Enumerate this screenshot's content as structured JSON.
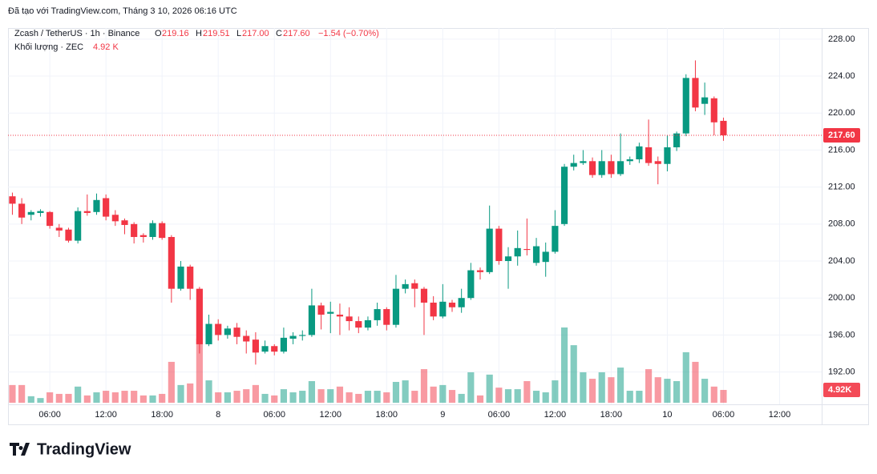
{
  "chart_data": {
    "type": "candlestick",
    "caption": "Đã tạo với TradingView.com, Tháng 3 10, 2026 06:16 UTC",
    "legend": {
      "symbol": "Zcash / TetherUS · 1h · Binance",
      "o_label": "O",
      "open": "219.16",
      "h_label": "H",
      "high": "219.51",
      "l_label": "L",
      "low": "217.00",
      "c_label": "C",
      "close": "217.60",
      "change": "−1.54 (−0.70%)",
      "volume_title": "Khối lượng · ZEC",
      "volume_value": "4.92 K"
    },
    "volume_label": "4.92K",
    "brand": "TradingView",
    "up_color": "#089981",
    "down_color": "#f23645",
    "x": [
      "2026-03-07T02:00",
      "2026-03-07T03:00",
      "2026-03-07T04:00",
      "2026-03-07T05:00",
      "2026-03-07T06:00",
      "2026-03-07T07:00",
      "2026-03-07T08:00",
      "2026-03-07T09:00",
      "2026-03-07T10:00",
      "2026-03-07T11:00",
      "2026-03-07T12:00",
      "2026-03-07T13:00",
      "2026-03-07T14:00",
      "2026-03-07T15:00",
      "2026-03-07T16:00",
      "2026-03-07T17:00",
      "2026-03-07T18:00",
      "2026-03-07T19:00",
      "2026-03-07T20:00",
      "2026-03-07T21:00",
      "2026-03-07T22:00",
      "2026-03-07T23:00",
      "2026-03-08T00:00",
      "2026-03-08T01:00",
      "2026-03-08T02:00",
      "2026-03-08T03:00",
      "2026-03-08T04:00",
      "2026-03-08T05:00",
      "2026-03-08T06:00",
      "2026-03-08T07:00",
      "2026-03-08T08:00",
      "2026-03-08T09:00",
      "2026-03-08T10:00",
      "2026-03-08T11:00",
      "2026-03-08T12:00",
      "2026-03-08T13:00",
      "2026-03-08T14:00",
      "2026-03-08T15:00",
      "2026-03-08T16:00",
      "2026-03-08T17:00",
      "2026-03-08T18:00",
      "2026-03-08T19:00",
      "2026-03-08T20:00",
      "2026-03-08T21:00",
      "2026-03-08T22:00",
      "2026-03-08T23:00",
      "2026-03-09T00:00",
      "2026-03-09T01:00",
      "2026-03-09T02:00",
      "2026-03-09T03:00",
      "2026-03-09T04:00",
      "2026-03-09T05:00",
      "2026-03-09T06:00",
      "2026-03-09T07:00",
      "2026-03-09T08:00",
      "2026-03-09T09:00",
      "2026-03-09T10:00",
      "2026-03-09T11:00",
      "2026-03-09T12:00",
      "2026-03-09T13:00",
      "2026-03-09T14:00",
      "2026-03-09T15:00",
      "2026-03-09T16:00",
      "2026-03-09T17:00",
      "2026-03-09T18:00",
      "2026-03-09T19:00",
      "2026-03-09T20:00",
      "2026-03-09T21:00",
      "2026-03-09T22:00",
      "2026-03-09T23:00",
      "2026-03-10T00:00",
      "2026-03-10T01:00",
      "2026-03-10T02:00",
      "2026-03-10T03:00",
      "2026-03-10T04:00",
      "2026-03-10T05:00",
      "2026-03-10T06:00"
    ],
    "open": [
      211,
      210.2,
      209,
      209.2,
      209.3,
      207.6,
      207.4,
      206.2,
      209.4,
      209.3,
      210.8,
      209,
      208.4,
      208,
      206.8,
      206.6,
      208.1,
      206.6,
      201,
      203.4,
      201,
      195,
      197.2,
      196,
      196.8,
      195.9,
      195.5,
      194.2,
      194.8,
      194.2,
      195.6,
      195.9,
      196,
      199.2,
      198.3,
      198.2,
      198,
      197.5,
      196.8,
      197.6,
      198.8,
      197.1,
      201,
      201.6,
      201,
      199.5,
      198,
      199.5,
      199,
      200,
      203,
      202.8,
      207.5,
      204,
      204.5,
      205.3,
      203.8,
      203.9,
      205,
      208,
      214.2,
      214.6,
      214.8,
      213.3,
      214.8,
      213.4,
      214.8,
      215,
      216.3,
      214.8,
      214.5,
      216.3,
      217.8,
      223.8,
      221,
      221.6,
      219.16
    ],
    "high": [
      211.4,
      210.8,
      209.5,
      209.6,
      209.4,
      208,
      207.6,
      209.8,
      211.2,
      211.3,
      211.2,
      209.5,
      208.6,
      208.2,
      207,
      208.4,
      208.3,
      206.8,
      204,
      203.6,
      201.2,
      198.2,
      197.7,
      197,
      197.3,
      196.5,
      196.3,
      195.4,
      195,
      196.8,
      196.3,
      196.5,
      201,
      199.5,
      199.6,
      199.4,
      199,
      198,
      198,
      199.5,
      199,
      202.5,
      202,
      202,
      201.2,
      200.2,
      201.5,
      199.8,
      201,
      203.8,
      203.3,
      210,
      207.8,
      205.5,
      207.3,
      208.6,
      206.5,
      206,
      209.5,
      214.5,
      215.5,
      216,
      215.2,
      216,
      215.5,
      217.8,
      215.3,
      216.8,
      219.3,
      215.3,
      217.6,
      218,
      224.2,
      225.7,
      223.3,
      221.8,
      219.51
    ],
    "low": [
      209,
      208,
      208.4,
      208.8,
      207.5,
      206.6,
      206,
      205.9,
      208.9,
      209,
      208.4,
      207.8,
      206.9,
      205.9,
      206,
      206.3,
      206.3,
      199.5,
      200.8,
      199.8,
      194,
      194.8,
      195.4,
      195.6,
      195,
      194,
      192.8,
      194,
      193.8,
      194,
      195,
      195.4,
      195.8,
      196.6,
      196.2,
      196,
      196.5,
      196.2,
      196.5,
      197,
      196.5,
      196.8,
      200.5,
      199,
      196,
      197.6,
      197.8,
      198.5,
      198.4,
      199.8,
      202,
      202.6,
      203.6,
      201,
      203.5,
      204.6,
      203.5,
      202.3,
      204.8,
      207.8,
      213.8,
      214.4,
      213,
      213,
      213,
      213.2,
      214.4,
      214.6,
      214.3,
      212.3,
      213.7,
      215.9,
      217.5,
      220.2,
      219.8,
      217.6,
      217.0
    ],
    "close": [
      210.2,
      208.7,
      209.3,
      209.4,
      207.8,
      207.3,
      206.2,
      209.4,
      209.2,
      210.6,
      208.8,
      208.3,
      207.9,
      206.6,
      206.6,
      208.1,
      206.5,
      201,
      203.4,
      201,
      195,
      197.2,
      196,
      196.7,
      195.8,
      195.3,
      194.1,
      194.8,
      194.2,
      195.7,
      195.9,
      196,
      199.2,
      198.2,
      198.5,
      198,
      197.5,
      196.8,
      197.6,
      198.8,
      197.1,
      201,
      201.5,
      201,
      199.5,
      198,
      199.6,
      199,
      200,
      203,
      202.8,
      207.5,
      204,
      204.5,
      205.4,
      205.2,
      205.6,
      205,
      207.8,
      214.2,
      214.6,
      214.8,
      213.3,
      214.8,
      213.4,
      214.8,
      215,
      216.4,
      214.6,
      214.5,
      216.3,
      217.8,
      223.8,
      220.6,
      221.7,
      219,
      217.6
    ],
    "volume": [
      6.8,
      6.8,
      2.5,
      1.8,
      4,
      3.4,
      3.4,
      6.2,
      2.8,
      4,
      4.6,
      4,
      4.6,
      4.6,
      2.8,
      2.8,
      3.4,
      15.7,
      6.8,
      7.4,
      24.6,
      8.6,
      4,
      4,
      4.6,
      5.2,
      6.8,
      3.4,
      2.8,
      5.2,
      4,
      4.6,
      8.3,
      5.2,
      5.2,
      6.2,
      4,
      3.4,
      4.6,
      4.6,
      4,
      8,
      8.6,
      4.6,
      12.9,
      6.2,
      6.8,
      4.9,
      3.4,
      11.7,
      2.8,
      10.8,
      5.8,
      5.2,
      5.2,
      8.3,
      4.6,
      4,
      8.6,
      28.9,
      22.1,
      11.7,
      9.2,
      11.7,
      9.8,
      13.5,
      4.6,
      4.6,
      12.9,
      9.8,
      9.2,
      8.3,
      19.4,
      15.7,
      9.2,
      6.2,
      4.92
    ],
    "xlim": [
      "2026-03-07T01:32",
      "2026-03-10T16:30"
    ],
    "xticks": [
      {
        "value": "2026-03-07T06:00",
        "label": "06:00"
      },
      {
        "value": "2026-03-07T12:00",
        "label": "12:00"
      },
      {
        "value": "2026-03-07T18:00",
        "label": "18:00"
      },
      {
        "value": "2026-03-08T00:00",
        "label": "8"
      },
      {
        "value": "2026-03-08T06:00",
        "label": "06:00"
      },
      {
        "value": "2026-03-08T12:00",
        "label": "12:00"
      },
      {
        "value": "2026-03-08T18:00",
        "label": "18:00"
      },
      {
        "value": "2026-03-09T00:00",
        "label": "9"
      },
      {
        "value": "2026-03-09T06:00",
        "label": "06:00"
      },
      {
        "value": "2026-03-09T12:00",
        "label": "12:00"
      },
      {
        "value": "2026-03-09T18:00",
        "label": "18:00"
      },
      {
        "value": "2026-03-10T00:00",
        "label": "10"
      },
      {
        "value": "2026-03-10T06:00",
        "label": "06:00"
      },
      {
        "value": "2026-03-10T12:00",
        "label": "12:00"
      }
    ],
    "ylim": [
      188.5,
      229.2
    ],
    "yticks": [
      {
        "value": 192,
        "label": "192.00"
      },
      {
        "value": 196,
        "label": "196.00"
      },
      {
        "value": 200,
        "label": "200.00"
      },
      {
        "value": 204,
        "label": "204.00"
      },
      {
        "value": 208,
        "label": "208.00"
      },
      {
        "value": 212,
        "label": "212.00"
      },
      {
        "value": 216,
        "label": "216.00"
      },
      {
        "value": 220,
        "label": "220.00"
      },
      {
        "value": 224,
        "label": "224.00"
      },
      {
        "value": 228,
        "label": "228.00"
      }
    ],
    "grid": true
  }
}
